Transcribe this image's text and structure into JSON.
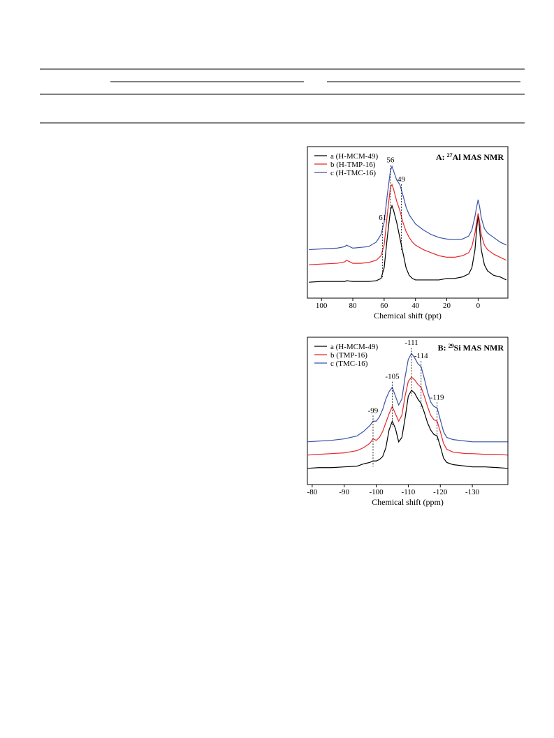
{
  "chart_data": [
    {
      "type": "line",
      "title": {
        "prefix": "A: ",
        "superscript": "27",
        "text": "Al MAS NMR"
      },
      "x_label": "Chemical shift (ppt)",
      "xlim": [
        109,
        -19
      ],
      "ylim": [
        0,
        100
      ],
      "xticks": [
        100,
        80,
        60,
        40,
        20,
        0
      ],
      "x": [
        108,
        100,
        90,
        85,
        84,
        80,
        75,
        70,
        65,
        62,
        60,
        58,
        56,
        55,
        54,
        52,
        50,
        48,
        46,
        44,
        42,
        40,
        35,
        30,
        25,
        20,
        15,
        10,
        6,
        4,
        2,
        1,
        0,
        -1,
        -2,
        -4,
        -6,
        -10,
        -14,
        -18
      ],
      "series": [
        {
          "name": "a (H-MCM-49)",
          "color": "#000000",
          "values": [
            10.5,
            11,
            11,
            11,
            11.5,
            11,
            11,
            11,
            11.5,
            13,
            20,
            40,
            58,
            61,
            58,
            50,
            40,
            30,
            20,
            15,
            13,
            12,
            12,
            12,
            12,
            13,
            13,
            14,
            16,
            20,
            32,
            45,
            55,
            45,
            32,
            22,
            18,
            15,
            14,
            12
          ]
        },
        {
          "name": "b (H-TMP-16)",
          "color": "#e8262a",
          "values": [
            22,
            22.5,
            23,
            24,
            25,
            23,
            23,
            23.5,
            25,
            28,
            35,
            55,
            73,
            75,
            72,
            64,
            58,
            50,
            44,
            40,
            37,
            35,
            32,
            30,
            28,
            27,
            27,
            28,
            30,
            34,
            43,
            50,
            56,
            50,
            42,
            35,
            32,
            29,
            27,
            25
          ]
        },
        {
          "name": "c (H-TMC-16)",
          "color": "#3a52a5",
          "values": [
            32,
            32.5,
            33,
            34,
            35,
            33,
            33.5,
            34,
            37,
            42,
            50,
            68,
            84,
            87,
            84,
            78,
            75,
            68,
            60,
            55,
            52,
            49,
            45,
            42,
            40,
            39,
            38.5,
            39,
            41,
            45,
            54,
            60,
            65,
            60,
            53,
            46,
            43,
            40,
            37,
            35
          ]
        }
      ],
      "annotations": [
        56,
        49,
        61
      ]
    },
    {
      "type": "line",
      "title": {
        "prefix": "B: ",
        "superscript": "29",
        "text": "Si MAS NMR"
      },
      "x_label": "Chemical shift (ppm)",
      "xlim": [
        -78.5,
        -141.1
      ],
      "ylim": [
        0,
        100
      ],
      "xticks": [
        -80,
        -90,
        -100,
        -110,
        -120,
        -130
      ],
      "x": [
        -78.5,
        -82,
        -86,
        -90,
        -94,
        -96,
        -98,
        -99,
        -100,
        -101,
        -102,
        -103,
        -104,
        -105,
        -106,
        -107,
        -108,
        -109,
        -110,
        -111,
        -112,
        -113,
        -114,
        -115,
        -116,
        -117,
        -118,
        -119,
        -120,
        -121,
        -122,
        -124,
        -126,
        -128,
        -130,
        -134,
        -138,
        -141
      ],
      "series": [
        {
          "name": "a (H-MCM-49)",
          "color": "#000000",
          "values": [
            11,
            11.5,
            11.5,
            12,
            12.5,
            14,
            15,
            16,
            16,
            17,
            19,
            25,
            37,
            43,
            38,
            29,
            32,
            45,
            60,
            64,
            62,
            58,
            55,
            49,
            42,
            37,
            34,
            33,
            26,
            18,
            15,
            13.5,
            13,
            12.5,
            12,
            12,
            11.5,
            11
          ]
        },
        {
          "name": "b (TMP-16)",
          "color": "#e8262a",
          "values": [
            20,
            20.5,
            21,
            21.5,
            23,
            25,
            28,
            31,
            30,
            32,
            36,
            42,
            48,
            53,
            48,
            43,
            47,
            60,
            70,
            73,
            71,
            68,
            66,
            60,
            53,
            47,
            44,
            43,
            36,
            28,
            24,
            22,
            21.5,
            21,
            21,
            20.5,
            20.5,
            20
          ]
        },
        {
          "name": "c (TMC-16)",
          "color": "#3a52a5",
          "values": [
            29,
            29.5,
            30,
            31,
            33,
            36,
            40,
            43,
            43,
            46,
            51,
            58,
            63,
            66,
            60,
            54,
            58,
            73,
            85,
            89,
            86,
            82,
            80,
            72,
            63,
            56,
            53,
            52,
            44,
            36,
            32,
            30.5,
            30,
            29.5,
            29,
            29,
            29,
            29
          ]
        }
      ],
      "annotations": [
        -99,
        -105,
        -111,
        -114,
        -119
      ]
    }
  ]
}
